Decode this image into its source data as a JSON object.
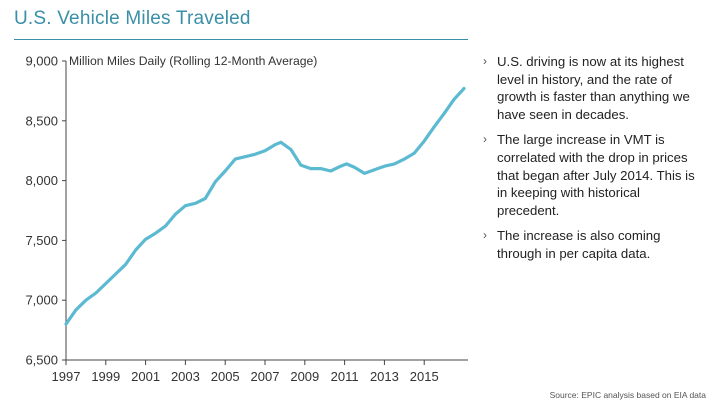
{
  "title": "U.S. Vehicle Miles Traveled",
  "bullets": [
    "U.S. driving is now at its highest level in history, and the rate of growth is faster than anything we have seen in decades.",
    "The large increase in VMT is correlated with the drop in prices that began after July 2014. This is in keeping with historical precedent.",
    "The increase is also coming through in per capita data."
  ],
  "bullet_icon": "chevron-right-icon",
  "source": "Source: EPIC analysis based on EIA data",
  "chart_data": {
    "type": "line",
    "title": "",
    "subtitle": "Million Miles Daily (Rolling 12-Month Average)",
    "xlabel": "",
    "ylabel": "",
    "x_ticks": [
      "1997",
      "1999",
      "2001",
      "2003",
      "2005",
      "2007",
      "2009",
      "2011",
      "2013",
      "2015"
    ],
    "y_ticks": [
      "9,000",
      "8,500",
      "8,000",
      "7,500",
      "7,000",
      "6,500"
    ],
    "xlim": [
      1997,
      2017.2
    ],
    "ylim": [
      6500,
      9000
    ],
    "grid": false,
    "color": "#5bbad1",
    "series": [
      {
        "x": [
          1997.0,
          1997.5,
          1998.0,
          1998.5,
          1999.0,
          1999.5,
          2000.0,
          2000.5,
          2001.0,
          2001.5,
          2002.0,
          2002.5,
          2003.0,
          2003.5,
          2004.0,
          2004.5,
          2005.0,
          2005.5,
          2006.0,
          2006.5,
          2007.0,
          2007.5,
          2007.8,
          2008.3,
          2008.8,
          2009.3,
          2009.8,
          2010.3,
          2010.8,
          2011.1,
          2011.5,
          2012.0,
          2012.5,
          2013.0,
          2013.5,
          2014.0,
          2014.5,
          2015.0,
          2015.5,
          2016.0,
          2016.5,
          2017.0
        ],
        "y": [
          6800,
          6920,
          7000,
          7060,
          7140,
          7220,
          7300,
          7420,
          7510,
          7560,
          7620,
          7720,
          7790,
          7810,
          7850,
          7990,
          8080,
          8180,
          8200,
          8220,
          8250,
          8300,
          8320,
          8260,
          8130,
          8100,
          8100,
          8080,
          8120,
          8140,
          8110,
          8060,
          8090,
          8120,
          8140,
          8180,
          8230,
          8330,
          8450,
          8560,
          8680,
          8770
        ]
      }
    ]
  }
}
